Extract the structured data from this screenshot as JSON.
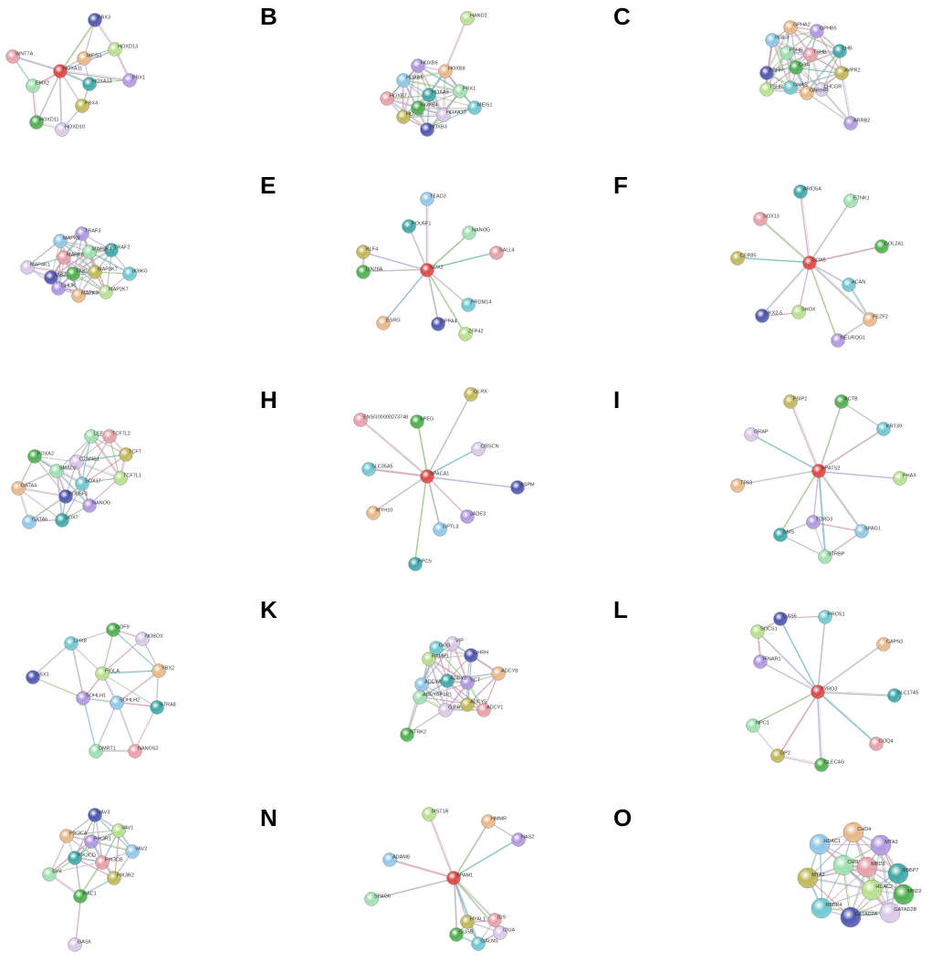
{
  "panels": [
    {
      "nodes": [
        "PBX3",
        "HOXD13",
        "MEIS1",
        "PBX1",
        "HOXA11",
        "HOXA13",
        "EMX2",
        "WNT7A",
        "PBX4",
        "HOXD11",
        "HOXD10"
      ]
    },
    {
      "letter": "B",
      "nodes": [
        "HAND2",
        "HOXB8",
        "HOXB6",
        "HOXB5",
        "HOXA9",
        "PBX1",
        "HOXB7",
        "HOXB9",
        "HOXB4",
        "HOXA10",
        "MEIS1",
        "HOXB3"
      ]
    },
    {
      "letter": "C",
      "nodes": [
        "GPHA2",
        "GPHB5",
        "INSL3",
        "LHB",
        "FSHB",
        "TSHB",
        "AVPR2",
        "CGA",
        "LHCGR",
        "GNAS",
        "FSHR",
        "TSHR",
        "GNRHR",
        "ARRB2"
      ]
    },
    {
      "nodes": [
        "TRAF3",
        "MAPK9",
        "TRAF2",
        "MAP2K4",
        "MAPK8",
        "MAP3K7",
        "TAB1",
        "MAP4K1",
        "IKBKG",
        "TAB2",
        "MAP2K7",
        "MAPK3",
        "CHUK"
      ]
    },
    {
      "letter": "E",
      "nodes": [
        "TEAD3",
        "POU5F1",
        "NANOG",
        "SALL4",
        "KLF4",
        "LIN28A",
        "SOX2",
        "PRDM14",
        "DPPA4",
        "ZFP42",
        "ESRG"
      ]
    },
    {
      "letter": "F",
      "nodes": [
        "ARID5A",
        "ETNK1",
        "SOX13",
        "CEP85",
        "COL2A1",
        "SOX5",
        "ACAN",
        "NKX2-5",
        "SHOX",
        "FEZF2",
        "NEUROG1"
      ]
    },
    {
      "nodes": [
        "LEF1",
        "TCF7L2",
        "TCF7",
        "FOXA2",
        "CTNNB1",
        "SOX17",
        "POU5F1",
        "TCF7L1",
        "GATA4",
        "NANOG",
        "GATA6",
        "SOX7",
        "SMAD2"
      ]
    },
    {
      "letter": "H",
      "nodes": [
        "ENSG00000273748",
        "GLRX",
        "SPEG",
        "OBSCN",
        "SLC35A5",
        "ASPM",
        "SPACA1",
        "MYH10",
        "JADE3",
        "GPTL3",
        "PPCS"
      ]
    },
    {
      "letter": "I",
      "nodes": [
        "FSIP2",
        "ACTB",
        "GRAP",
        "KRT39",
        "SPATS2",
        "PHAX",
        "TP63",
        "TDRD3",
        "SPAG1",
        "SMS",
        "STRBP"
      ]
    },
    {
      "nodes": [
        "GDF9",
        "NOBOX",
        "LHX8",
        "GBX1",
        "FIGLA",
        "YBX2",
        "SOHLH1",
        "SOHLH2",
        "STRA8",
        "DMRT1",
        "NANOS2"
      ]
    },
    {
      "letter": "K",
      "nodes": [
        "VIP",
        "GCG",
        "GHRH",
        "RAMP1",
        "ADCY8",
        "SCT",
        "ADCYAP1",
        "ADCY2",
        "ADCYAP1R1",
        "ADCY1",
        "ADCY5",
        "NTRK2",
        "GIPR"
      ]
    },
    {
      "letter": "L",
      "nodes": [
        "PROS1",
        "GAS6",
        "SOCS1",
        "CAPN3",
        "IFNAR1",
        "TYRO3",
        "SLC17A5",
        "NPC1",
        "COQ4",
        "GP2",
        "CLEC4G"
      ]
    },
    {
      "nodes": [
        "VAV3",
        "VAV1",
        "PIK3CA",
        "PIK3R1",
        "VAV2",
        "PIK3CD",
        "SYK",
        "PIK3CB",
        "PIK3R2",
        "RAC1",
        "GAS6"
      ]
    },
    {
      "letter": "N",
      "nodes": [
        "MST1R",
        "HMMR",
        "HAS2",
        "ADAM8",
        "SPAM1",
        "SPAG6",
        "IDS",
        "HYAL1",
        "GUSB",
        "IDUA",
        "GALNS"
      ]
    },
    {
      "letter": "O",
      "nodes": [
        "CHD4",
        "MTA3",
        "HDAC1",
        "RBBP7",
        "CHD3",
        "MBD3",
        "MTA2",
        "MBD2",
        "GATAD2B",
        "RBBP4",
        "GATAD2A",
        "HDAC2"
      ]
    }
  ]
}
